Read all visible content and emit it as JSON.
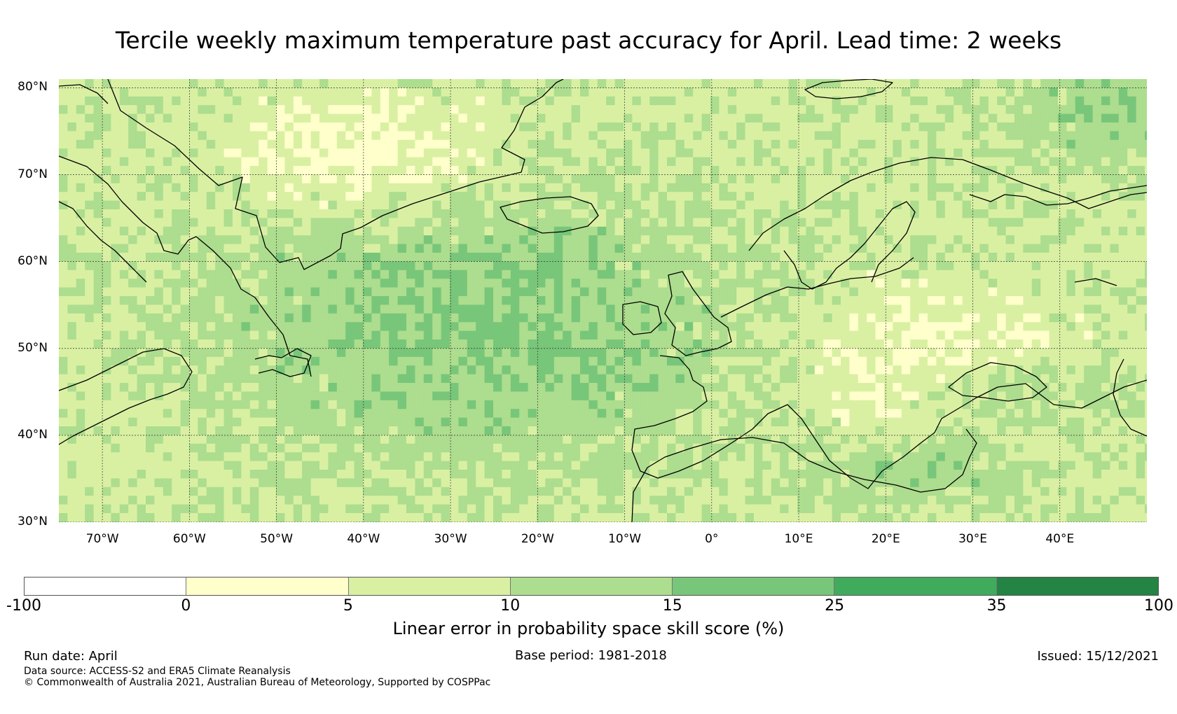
{
  "title": "Tercile weekly maximum temperature past accuracy for April. Lead time: 2 weeks",
  "map": {
    "lat_labels": [
      "80°N",
      "70°N",
      "60°N",
      "50°N",
      "40°N",
      "30°N"
    ],
    "lon_labels": [
      "70°W",
      "60°W",
      "50°W",
      "40°W",
      "30°W",
      "20°W",
      "10°W",
      "0°",
      "10°E",
      "20°E",
      "30°E",
      "40°E"
    ],
    "lat_range": [
      30,
      81
    ],
    "lon_range": [
      -75,
      50
    ]
  },
  "colorbar": {
    "ticks": [
      "-100",
      "0",
      "5",
      "10",
      "15",
      "25",
      "35",
      "100"
    ],
    "bins": [
      {
        "range": "-100 to 0",
        "color": "#ffffff"
      },
      {
        "range": "0 to 5",
        "color": "#ffffcc"
      },
      {
        "range": "5 to 10",
        "color": "#d9f0a3"
      },
      {
        "range": "10 to 15",
        "color": "#addd8e"
      },
      {
        "range": "15 to 25",
        "color": "#78c679"
      },
      {
        "range": "25 to 35",
        "color": "#41ab5d"
      },
      {
        "range": "35 to 100",
        "color": "#238443"
      }
    ],
    "label": "Linear error in probability space skill score (%)"
  },
  "footer": {
    "run_date": "Run date: April",
    "base_period": "Base period: 1981-2018",
    "issued": "Issued: 15/12/2021",
    "data_source": "Data source: ACCESS-S2 and ERA5 Climate Reanalysis",
    "copyright": "© Commonwealth of Australia 2021, Australian Bureau of Meteorology, Supported by COSPPac"
  }
}
